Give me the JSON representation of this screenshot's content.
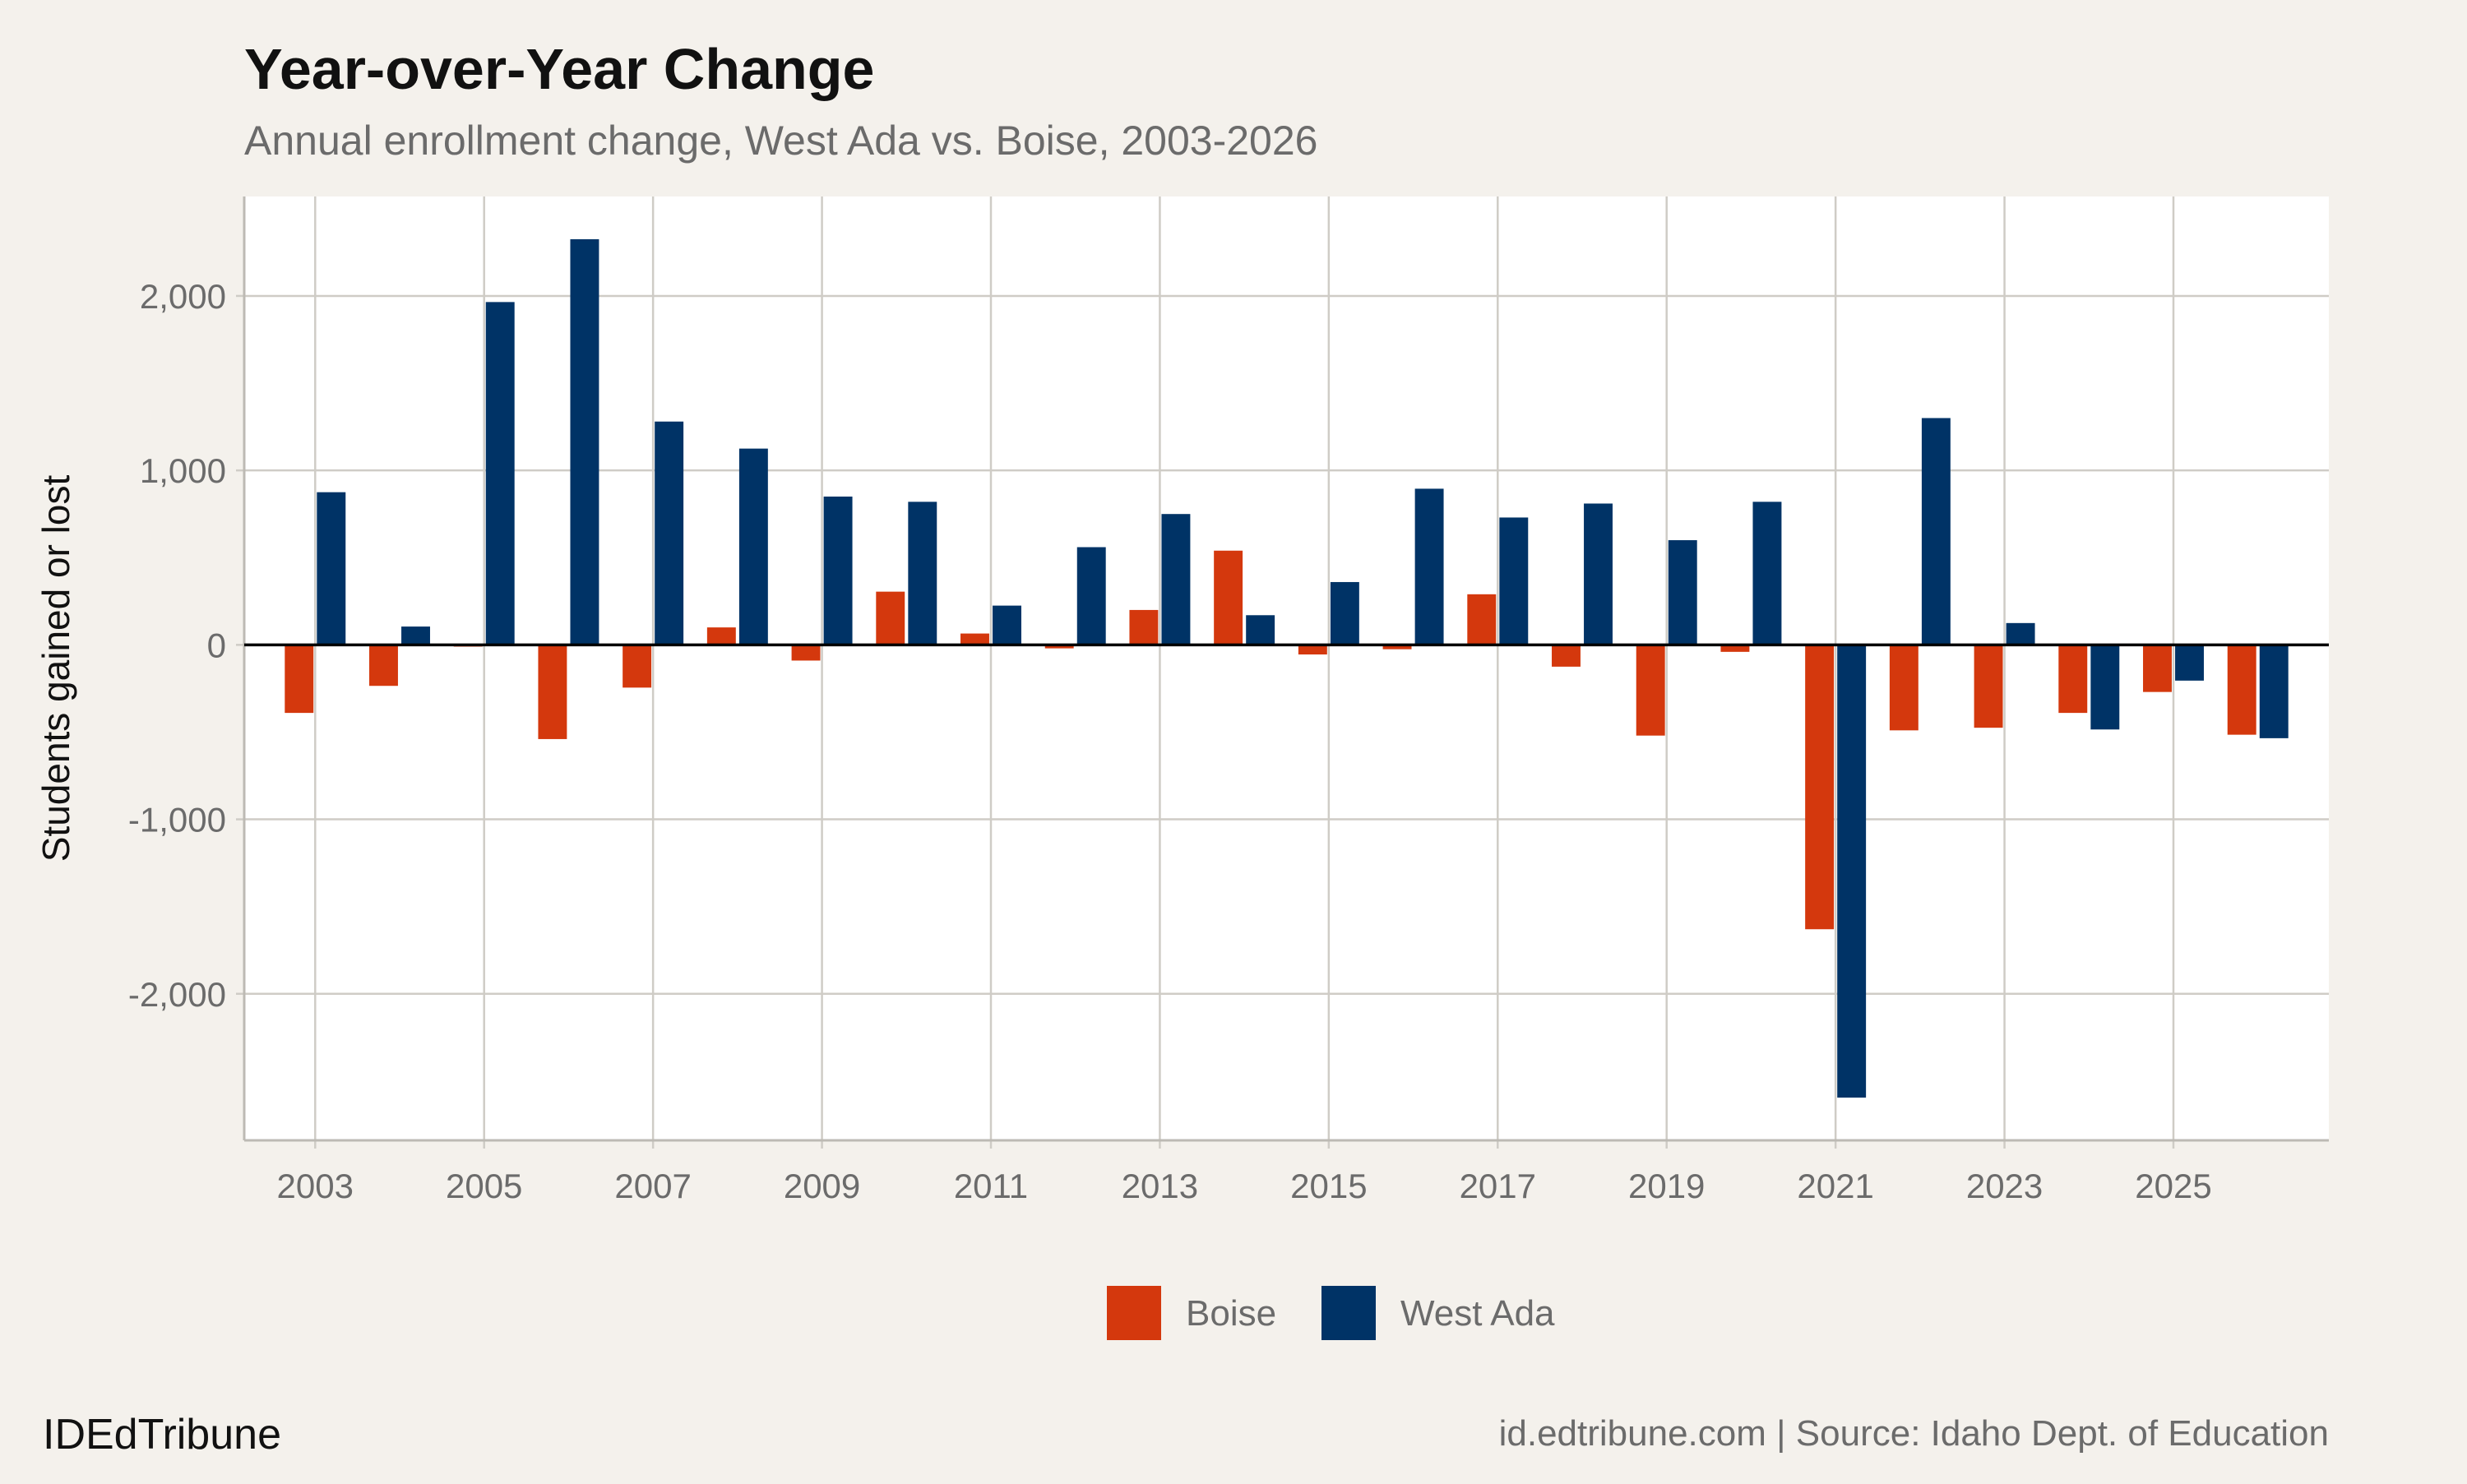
{
  "chart_data": {
    "type": "bar",
    "title": "Year-over-Year Change",
    "subtitle": "Annual enrollment change, West Ada vs. Boise, 2003-2026",
    "y_label": "Students gained or lost",
    "x": [
      2003,
      2004,
      2005,
      2006,
      2007,
      2008,
      2009,
      2010,
      2011,
      2012,
      2013,
      2014,
      2015,
      2016,
      2017,
      2018,
      2019,
      2020,
      2021,
      2022,
      2023,
      2024,
      2025,
      2026
    ],
    "series": [
      {
        "name": "Boise",
        "color": "#d4380d",
        "values": [
          -390,
          -235,
          -10,
          -540,
          -245,
          100,
          -90,
          305,
          65,
          -20,
          200,
          540,
          -55,
          -25,
          290,
          -125,
          -520,
          -40,
          -1630,
          -490,
          -475,
          -390,
          -270,
          -515
        ]
      },
      {
        "name": "West Ada",
        "color": "#003366",
        "values": [
          875,
          105,
          1965,
          2325,
          1280,
          1125,
          850,
          820,
          225,
          560,
          750,
          170,
          360,
          895,
          730,
          810,
          600,
          820,
          -2595,
          1300,
          125,
          -485,
          -205,
          -535
        ]
      }
    ],
    "xlim": [
      2002.16,
      2026.84
    ],
    "xticks": [
      2003,
      2005,
      2007,
      2009,
      2011,
      2013,
      2015,
      2017,
      2019,
      2021,
      2023,
      2025
    ],
    "ylim": [
      -2840,
      2570
    ],
    "yticks": [
      {
        "value": -2000,
        "label": "-2,000"
      },
      {
        "value": -1000,
        "label": "-1,000"
      },
      0,
      {
        "value": 1000,
        "label": "1,000"
      },
      {
        "value": 2000,
        "label": "2,000"
      }
    ],
    "grid": true,
    "legend": "bottom",
    "brand": "IDEdTribune",
    "source": "id.edtribune.com | Source: Idaho Dept. of Education"
  }
}
